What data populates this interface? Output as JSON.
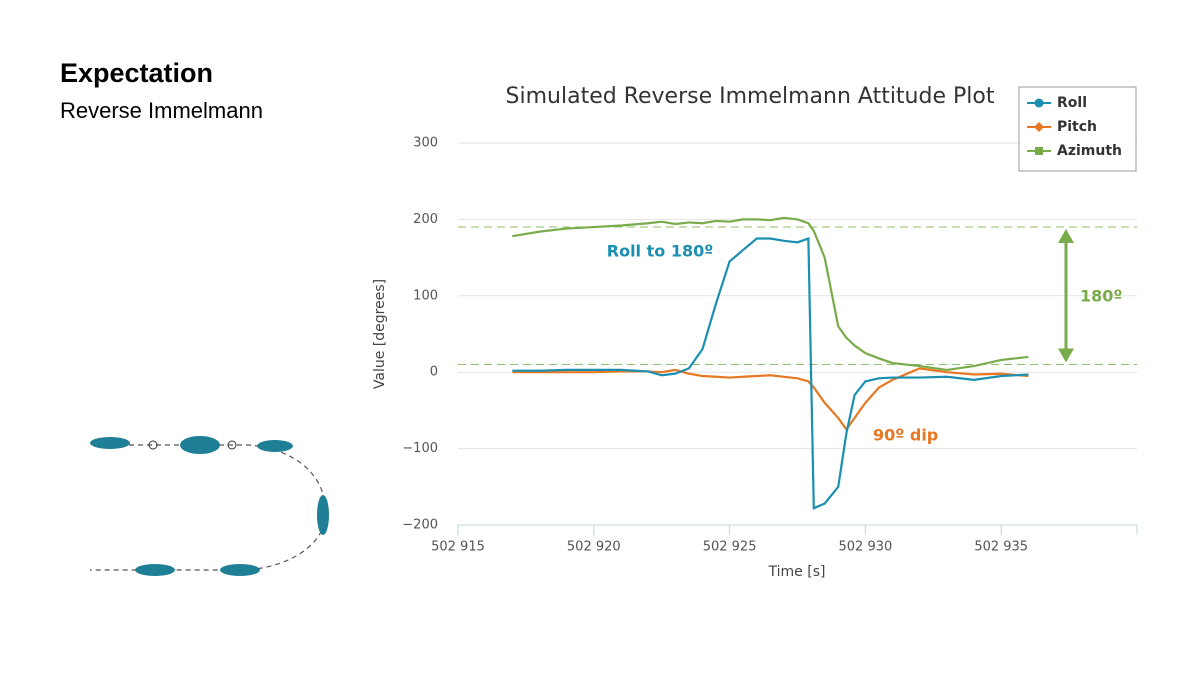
{
  "slide": {
    "title": "Expectation",
    "subtitle": "Reverse Immelmann"
  },
  "chart_data": {
    "type": "line",
    "title": "Simulated Reverse Immelmann Attitude Plot",
    "x_label": "Time [s]",
    "y_label": "Value [degrees]",
    "x": [
      502917,
      502918,
      502919,
      502920,
      502921,
      502922,
      502922.5,
      502923,
      502923.5,
      502924,
      502924.5,
      502925,
      502925.5,
      502926,
      502926.5,
      502927,
      502927.5,
      502927.9,
      502928.1,
      502928.5,
      502929,
      502929.3,
      502929.6,
      502930,
      502930.5,
      502931,
      502932,
      502933,
      502934,
      502935,
      502936
    ],
    "series": [
      {
        "name": "Roll",
        "color": "#1a8fb0",
        "marker": "circle",
        "values": [
          2,
          2,
          3,
          3,
          3,
          1,
          -4,
          -2,
          5,
          30,
          90,
          145,
          160,
          175,
          175,
          172,
          170,
          175,
          -178,
          -172,
          -150,
          -80,
          -30,
          -12,
          -8,
          -7,
          -7,
          -6,
          -10,
          -5,
          -3
        ]
      },
      {
        "name": "Pitch",
        "color": "#e87722",
        "marker": "diamond",
        "values": [
          0,
          0,
          0,
          0,
          1,
          1,
          0,
          3,
          -2,
          -5,
          -6,
          -7,
          -6,
          -5,
          -4,
          -6,
          -8,
          -12,
          -20,
          -40,
          -60,
          -75,
          -60,
          -40,
          -20,
          -10,
          5,
          0,
          -3,
          -2,
          -5
        ]
      },
      {
        "name": "Azimuth",
        "color": "#7aab4a",
        "marker": "square",
        "values": [
          178,
          184,
          188,
          190,
          192,
          195,
          197,
          194,
          196,
          195,
          198,
          197,
          200,
          200,
          199,
          202,
          200,
          195,
          185,
          150,
          60,
          45,
          35,
          25,
          18,
          12,
          8,
          3,
          8,
          16,
          20
        ]
      }
    ],
    "xlim": [
      502915,
      502940
    ],
    "xticks": [
      {
        "value": 502915,
        "label": "502 915"
      },
      {
        "value": 502920,
        "label": "502 920"
      },
      {
        "value": 502925,
        "label": "502 925"
      },
      {
        "value": 502930,
        "label": "502 930"
      },
      {
        "value": 502935,
        "label": "502 935"
      }
    ],
    "ylim": [
      -200,
      300
    ],
    "yticks": [
      300,
      200,
      100,
      0,
      {
        "value": -100,
        "label": "−100"
      },
      {
        "value": -200,
        "label": "−200"
      }
    ],
    "grid": true,
    "legend": "top-right",
    "reference_lines": {
      "values": [
        190,
        10
      ],
      "color": "#8cc06a"
    },
    "annotations": [
      {
        "text": "Roll to 180º",
        "color": "#1a8fb0"
      },
      {
        "text": "90º dip",
        "color": "#e87722"
      },
      {
        "text": "180º",
        "color": "#7aab4a"
      }
    ]
  }
}
